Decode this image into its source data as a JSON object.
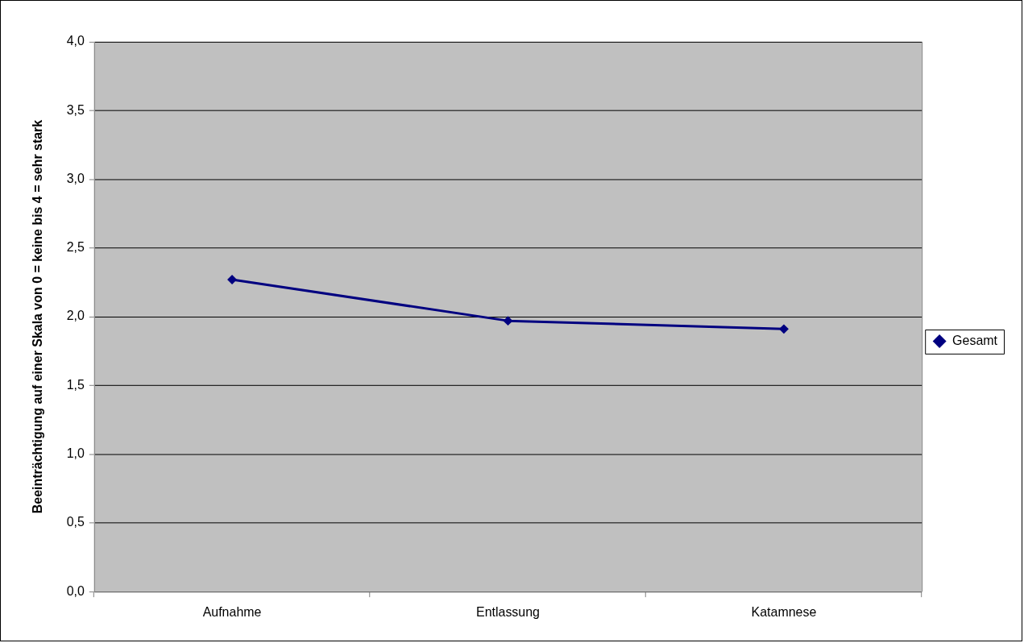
{
  "chart_data": {
    "type": "line",
    "ylabel": "Beeinträchtigung auf einer Skala von 0 = keine bis 4 = sehr stark",
    "categories": [
      "Aufnahme",
      "Entlassung",
      "Katamnese"
    ],
    "series": [
      {
        "name": "Gesamt",
        "color": "#000080",
        "values": [
          2.27,
          1.97,
          1.91
        ]
      }
    ],
    "ylim": [
      0,
      4
    ],
    "yticks": [
      {
        "value": 0,
        "label": "0,0"
      },
      {
        "value": 0.5,
        "label": "0,5"
      },
      {
        "value": 1,
        "label": "1,0"
      },
      {
        "value": 1.5,
        "label": "1,5"
      },
      {
        "value": 2,
        "label": "2,0"
      },
      {
        "value": 2.5,
        "label": "2,5"
      },
      {
        "value": 3,
        "label": "3,0"
      },
      {
        "value": 3.5,
        "label": "3,5"
      },
      {
        "value": 4,
        "label": "4,0"
      }
    ],
    "grid": "y",
    "legend": "right",
    "marker": "diamond"
  }
}
